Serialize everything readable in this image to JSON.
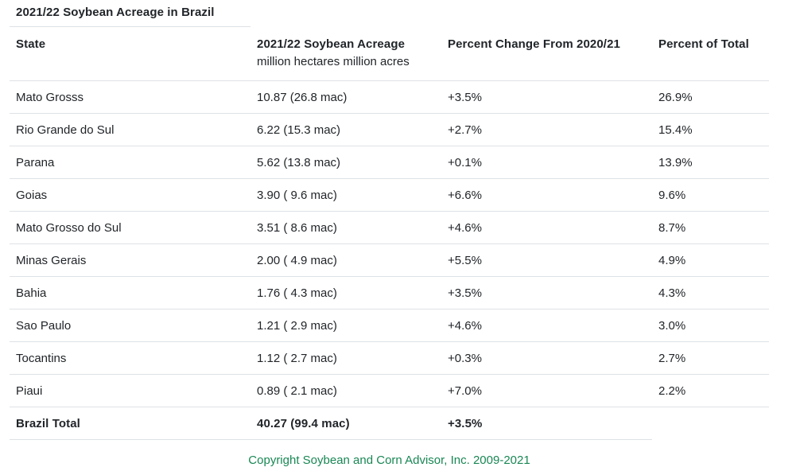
{
  "page": {
    "title": "2021/22 Soybean Acreage in Brazil",
    "footer_text": "Copyright Soybean and Corn Advisor, Inc. 2009-2021"
  },
  "colors": {
    "text": "#212529",
    "border": "#dee2e6",
    "footer_green": "#198754",
    "background": "#ffffff"
  },
  "table": {
    "headers": {
      "state": "State",
      "acreage": "2021/22 Soybean Acreage",
      "acreage_sub": "million hectares million acres",
      "pct_change": "Percent Change From 2020/21",
      "pct_total": "Percent of Total"
    },
    "rows": [
      {
        "state": "Mato Grosss",
        "acreage": "10.87 (26.8 mac)",
        "pct_change": "+3.5%",
        "pct_total": "26.9%"
      },
      {
        "state": "Rio Grande do Sul",
        "acreage": "6.22 (15.3 mac)",
        "pct_change": "+2.7%",
        "pct_total": "15.4%"
      },
      {
        "state": "Parana",
        "acreage": "5.62 (13.8 mac)",
        "pct_change": "+0.1%",
        "pct_total": "13.9%"
      },
      {
        "state": "Goias",
        "acreage": "3.90 ( 9.6 mac)",
        "pct_change": "+6.6%",
        "pct_total": "9.6%"
      },
      {
        "state": "Mato Grosso do Sul",
        "acreage": "3.51 ( 8.6 mac)",
        "pct_change": "+4.6%",
        "pct_total": "8.7%"
      },
      {
        "state": "Minas Gerais",
        "acreage": "2.00 ( 4.9 mac)",
        "pct_change": "+5.5%",
        "pct_total": "4.9%"
      },
      {
        "state": "Bahia",
        "acreage": "1.76 ( 4.3 mac)",
        "pct_change": "+3.5%",
        "pct_total": "4.3%"
      },
      {
        "state": "Sao Paulo",
        "acreage": "1.21 ( 2.9 mac)",
        "pct_change": "+4.6%",
        "pct_total": "3.0%"
      },
      {
        "state": "Tocantins",
        "acreage": "1.12 ( 2.7 mac)",
        "pct_change": "+0.3%",
        "pct_total": "2.7%"
      },
      {
        "state": "Piaui",
        "acreage": "0.89 ( 2.1 mac)",
        "pct_change": "+7.0%",
        "pct_total": "2.2%"
      }
    ],
    "total_row": {
      "state": "Brazil Total",
      "acreage": "40.27 (99.4 mac)",
      "pct_change": "+3.5%",
      "pct_total": ""
    }
  }
}
